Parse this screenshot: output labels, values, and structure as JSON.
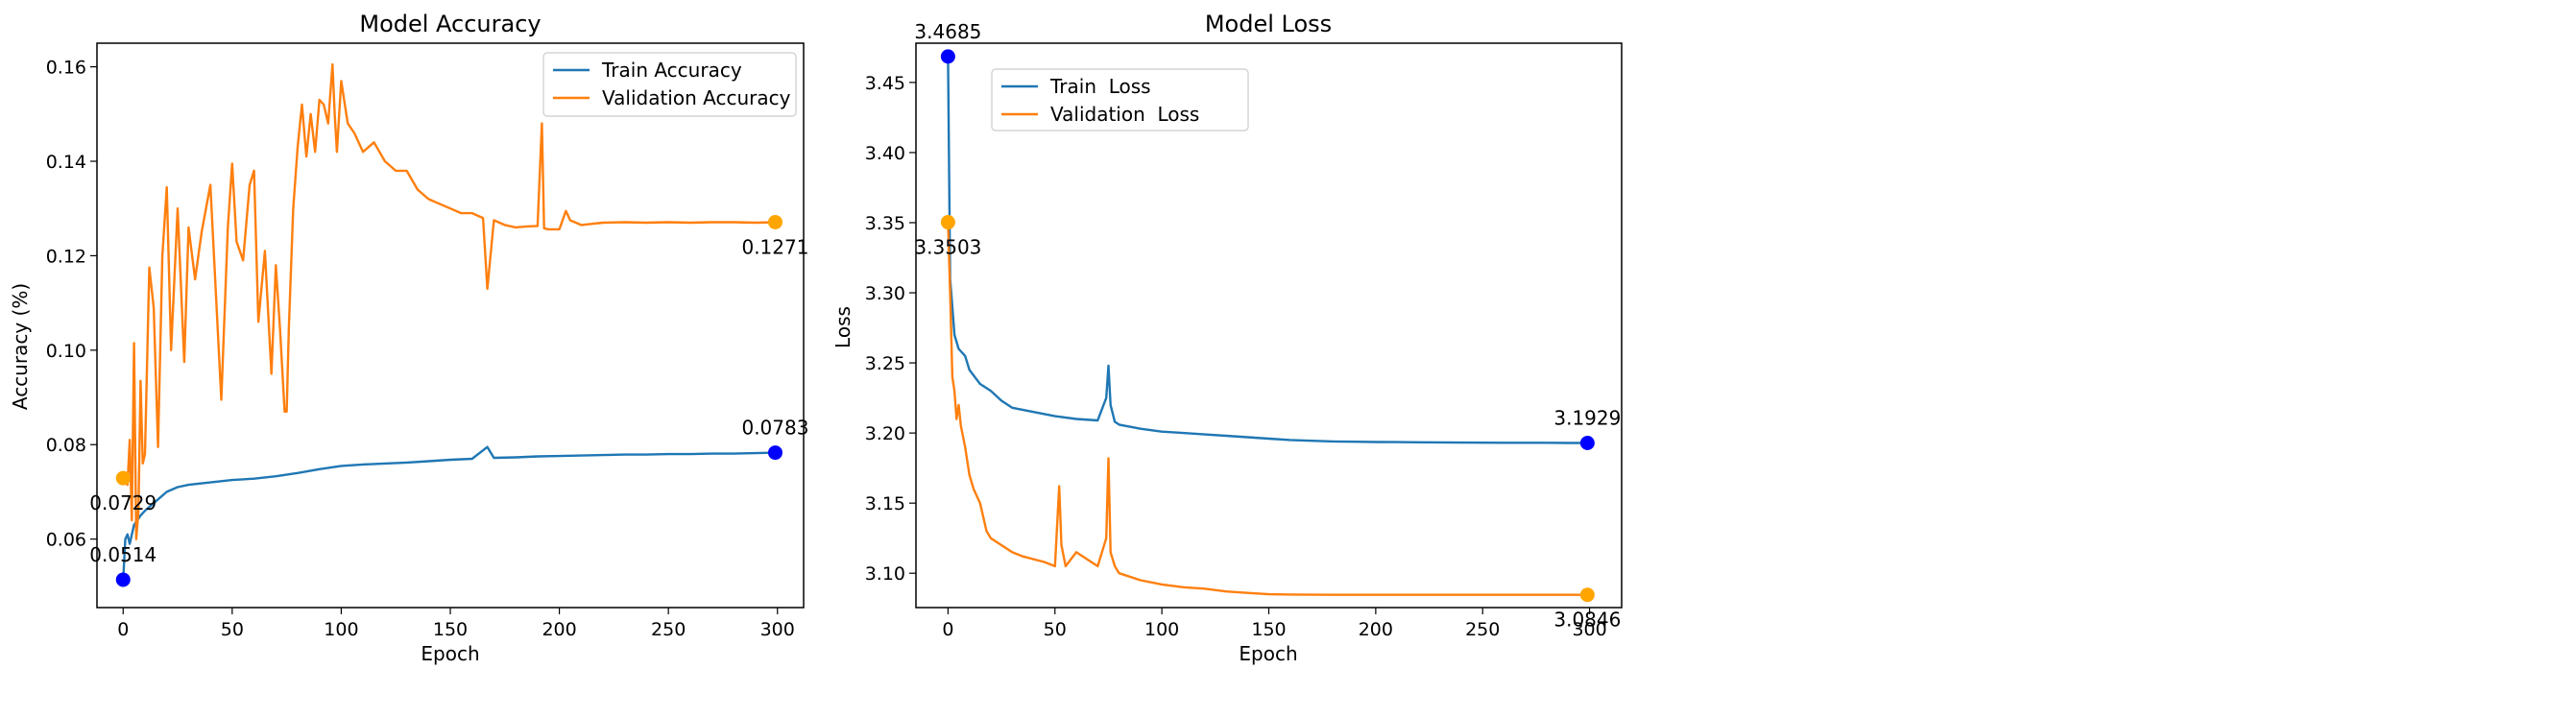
{
  "chart_data": [
    {
      "type": "line",
      "title": "Model Accuracy",
      "xlabel": "Epoch",
      "ylabel": "Accuracy (%)",
      "xlim": [
        -12,
        312
      ],
      "ylim": [
        0.0455,
        0.165
      ],
      "xticks": [
        "0",
        "50",
        "100",
        "150",
        "200",
        "250",
        "300"
      ],
      "yticks": [
        "0.06",
        "0.08",
        "0.10",
        "0.12",
        "0.14",
        "0.16"
      ],
      "legend": "top-right",
      "grid": false,
      "series": [
        {
          "name": "Train Accuracy",
          "color": "#1f77b4",
          "x": [
            0,
            1,
            2,
            3,
            5,
            8,
            10,
            15,
            20,
            25,
            30,
            40,
            50,
            60,
            70,
            80,
            90,
            100,
            110,
            120,
            130,
            140,
            150,
            160,
            167,
            170,
            180,
            190,
            200,
            210,
            220,
            230,
            240,
            250,
            260,
            270,
            280,
            290,
            299
          ],
          "values": [
            0.0514,
            0.06,
            0.061,
            0.059,
            0.063,
            0.065,
            0.066,
            0.068,
            0.07,
            0.071,
            0.0715,
            0.072,
            0.0725,
            0.0728,
            0.0733,
            0.074,
            0.0748,
            0.0755,
            0.0758,
            0.076,
            0.0762,
            0.0765,
            0.0768,
            0.077,
            0.0795,
            0.0772,
            0.0773,
            0.0775,
            0.0776,
            0.0777,
            0.0778,
            0.0779,
            0.0779,
            0.078,
            0.078,
            0.0781,
            0.0781,
            0.0782,
            0.0783
          ]
        },
        {
          "name": "Validation Accuracy",
          "color": "#ff7f0e",
          "x": [
            0,
            2,
            3,
            4,
            5,
            6,
            7,
            8,
            9,
            10,
            12,
            14,
            16,
            18,
            20,
            22,
            25,
            28,
            30,
            33,
            36,
            40,
            45,
            48,
            50,
            52,
            55,
            58,
            60,
            62,
            65,
            68,
            70,
            72,
            74,
            75,
            76,
            78,
            80,
            82,
            84,
            86,
            88,
            90,
            92,
            94,
            96,
            97,
            98,
            100,
            103,
            106,
            110,
            115,
            120,
            125,
            130,
            135,
            140,
            145,
            150,
            155,
            160,
            165,
            167,
            170,
            175,
            180,
            185,
            190,
            192,
            193,
            195,
            200,
            203,
            205,
            210,
            220,
            230,
            240,
            250,
            260,
            270,
            280,
            290,
            299
          ],
          "values": [
            0.0729,
            0.0715,
            0.081,
            0.064,
            0.1015,
            0.06,
            0.066,
            0.0935,
            0.076,
            0.078,
            0.1175,
            0.109,
            0.0795,
            0.12,
            0.1345,
            0.1,
            0.13,
            0.0975,
            0.126,
            0.115,
            0.125,
            0.135,
            0.0895,
            0.126,
            0.1395,
            0.123,
            0.119,
            0.135,
            0.138,
            0.106,
            0.121,
            0.095,
            0.118,
            0.104,
            0.087,
            0.087,
            0.105,
            0.13,
            0.143,
            0.152,
            0.141,
            0.15,
            0.142,
            0.153,
            0.152,
            0.148,
            0.1605,
            0.15,
            0.142,
            0.157,
            0.148,
            0.146,
            0.142,
            0.144,
            0.14,
            0.138,
            0.138,
            0.134,
            0.132,
            0.131,
            0.13,
            0.129,
            0.129,
            0.128,
            0.113,
            0.1275,
            0.1265,
            0.126,
            0.1262,
            0.1263,
            0.148,
            0.1258,
            0.1256,
            0.1256,
            0.1295,
            0.1275,
            0.1265,
            0.127,
            0.1271,
            0.127,
            0.1271,
            0.127,
            0.1271,
            0.1271,
            0.127,
            0.1271
          ]
        }
      ],
      "annotations": [
        {
          "text": "0.0514",
          "x": 0,
          "y": 0.0514,
          "color": "#0000ff",
          "placement": "above"
        },
        {
          "text": "0.0729",
          "x": 0,
          "y": 0.0729,
          "color": "#ffa500",
          "placement": "below"
        },
        {
          "text": "0.0783",
          "x": 299,
          "y": 0.0783,
          "color": "#0000ff",
          "placement": "above"
        },
        {
          "text": "0.1271",
          "x": 299,
          "y": 0.1271,
          "color": "#ffa500",
          "placement": "below"
        }
      ]
    },
    {
      "type": "line",
      "title": "Model Loss",
      "xlabel": "Epoch",
      "ylabel": "Loss",
      "xlim": [
        -15,
        315
      ],
      "ylim": [
        3.0755,
        3.478
      ],
      "xticks": [
        "0",
        "50",
        "100",
        "150",
        "200",
        "250",
        "300"
      ],
      "yticks": [
        "3.10",
        "3.15",
        "3.20",
        "3.25",
        "3.30",
        "3.35",
        "3.40",
        "3.45"
      ],
      "legend": "top-left",
      "grid": false,
      "series": [
        {
          "name": "Train  Loss",
          "color": "#1f77b4",
          "x": [
            0,
            1,
            2,
            3,
            5,
            8,
            10,
            15,
            20,
            25,
            30,
            40,
            50,
            60,
            70,
            74,
            75,
            76,
            78,
            80,
            90,
            100,
            110,
            120,
            130,
            140,
            150,
            160,
            170,
            180,
            190,
            200,
            210,
            220,
            230,
            240,
            250,
            260,
            270,
            280,
            290,
            299
          ],
          "values": [
            3.4685,
            3.31,
            3.29,
            3.27,
            3.26,
            3.255,
            3.245,
            3.235,
            3.23,
            3.223,
            3.218,
            3.215,
            3.212,
            3.21,
            3.209,
            3.225,
            3.248,
            3.22,
            3.208,
            3.206,
            3.203,
            3.201,
            3.2,
            3.199,
            3.198,
            3.197,
            3.196,
            3.195,
            3.1945,
            3.194,
            3.1938,
            3.1936,
            3.1935,
            3.1934,
            3.1933,
            3.1932,
            3.1931,
            3.193,
            3.193,
            3.193,
            3.1929,
            3.1929
          ]
        },
        {
          "name": "Validation  Loss",
          "color": "#ff7f0e",
          "x": [
            0,
            1,
            2,
            3,
            4,
            5,
            6,
            8,
            10,
            12,
            15,
            18,
            20,
            25,
            30,
            35,
            40,
            45,
            50,
            52,
            53,
            55,
            60,
            65,
            70,
            74,
            75,
            76,
            78,
            80,
            90,
            100,
            110,
            120,
            130,
            140,
            150,
            160,
            170,
            180,
            190,
            200,
            210,
            220,
            230,
            240,
            250,
            260,
            270,
            280,
            290,
            299
          ],
          "values": [
            3.3503,
            3.3,
            3.24,
            3.23,
            3.21,
            3.22,
            3.205,
            3.19,
            3.17,
            3.16,
            3.15,
            3.13,
            3.125,
            3.12,
            3.115,
            3.112,
            3.11,
            3.108,
            3.105,
            3.162,
            3.12,
            3.105,
            3.115,
            3.11,
            3.105,
            3.125,
            3.182,
            3.115,
            3.105,
            3.1,
            3.095,
            3.092,
            3.09,
            3.089,
            3.087,
            3.086,
            3.085,
            3.0848,
            3.0847,
            3.0846,
            3.0846,
            3.0846,
            3.0846,
            3.0846,
            3.0846,
            3.0846,
            3.0846,
            3.0846,
            3.0846,
            3.0846,
            3.0846,
            3.0846
          ]
        }
      ],
      "annotations": [
        {
          "text": "3.4685",
          "x": 0,
          "y": 3.4685,
          "color": "#0000ff",
          "placement": "above"
        },
        {
          "text": "3.3503",
          "x": 0,
          "y": 3.3503,
          "color": "#ffa500",
          "placement": "below"
        },
        {
          "text": "3.1929",
          "x": 299,
          "y": 3.1929,
          "color": "#0000ff",
          "placement": "above"
        },
        {
          "text": "3.0846",
          "x": 299,
          "y": 3.0846,
          "color": "#ffa500",
          "placement": "below"
        }
      ]
    }
  ]
}
